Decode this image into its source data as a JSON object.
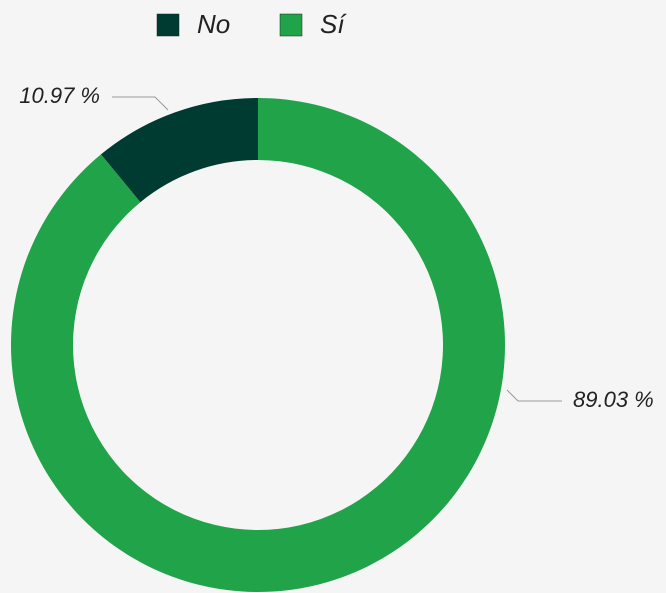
{
  "chart_data": {
    "type": "donut",
    "series": [
      {
        "name": "No",
        "color": "#003b32",
        "values": [
          10.97
        ],
        "value_labels": [
          "10.97 %"
        ]
      },
      {
        "name": "Sí",
        "color": "#21a34a",
        "values": [
          89.03
        ],
        "value_labels": [
          "89.03 %"
        ]
      }
    ],
    "legend": "top"
  }
}
